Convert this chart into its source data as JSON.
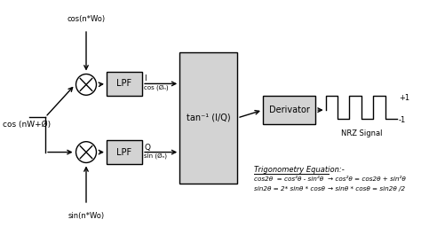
{
  "bg_color": "#ffffff",
  "line_color": "#000000",
  "box_color": "#d3d3d3",
  "text_color": "#000000",
  "fig_width": 4.74,
  "fig_height": 2.65,
  "dpi": 100,
  "input_label": "cos (nW+Ø)",
  "cos_label": "cos(n*Wo)",
  "sin_label": "sin(n*Wo)",
  "arctan_label": "tan⁻¹ (I/Q)",
  "derivator_label": "Derivator",
  "nrz_label": "NRZ Signal",
  "plus1_label": "+1",
  "minus1_label": "-1",
  "lpf_label": "LPF",
  "i_label": "I",
  "q_label": "Q",
  "cos_phi_label": "cos (Øₙ)",
  "sin_phi_label": "sin (Øₙ)",
  "trig_title": "Trigonometry Equation:-",
  "trig_eq1_left": "cos2θ  = cos²θ - sin²θ",
  "trig_eq1_right": "→ cos²θ = cos2θ + sin²θ",
  "trig_eq2_left": "sin2θ = 2* sinθ * cosθ",
  "trig_eq2_right": "→ sinθ * cosθ = sin2θ /2"
}
